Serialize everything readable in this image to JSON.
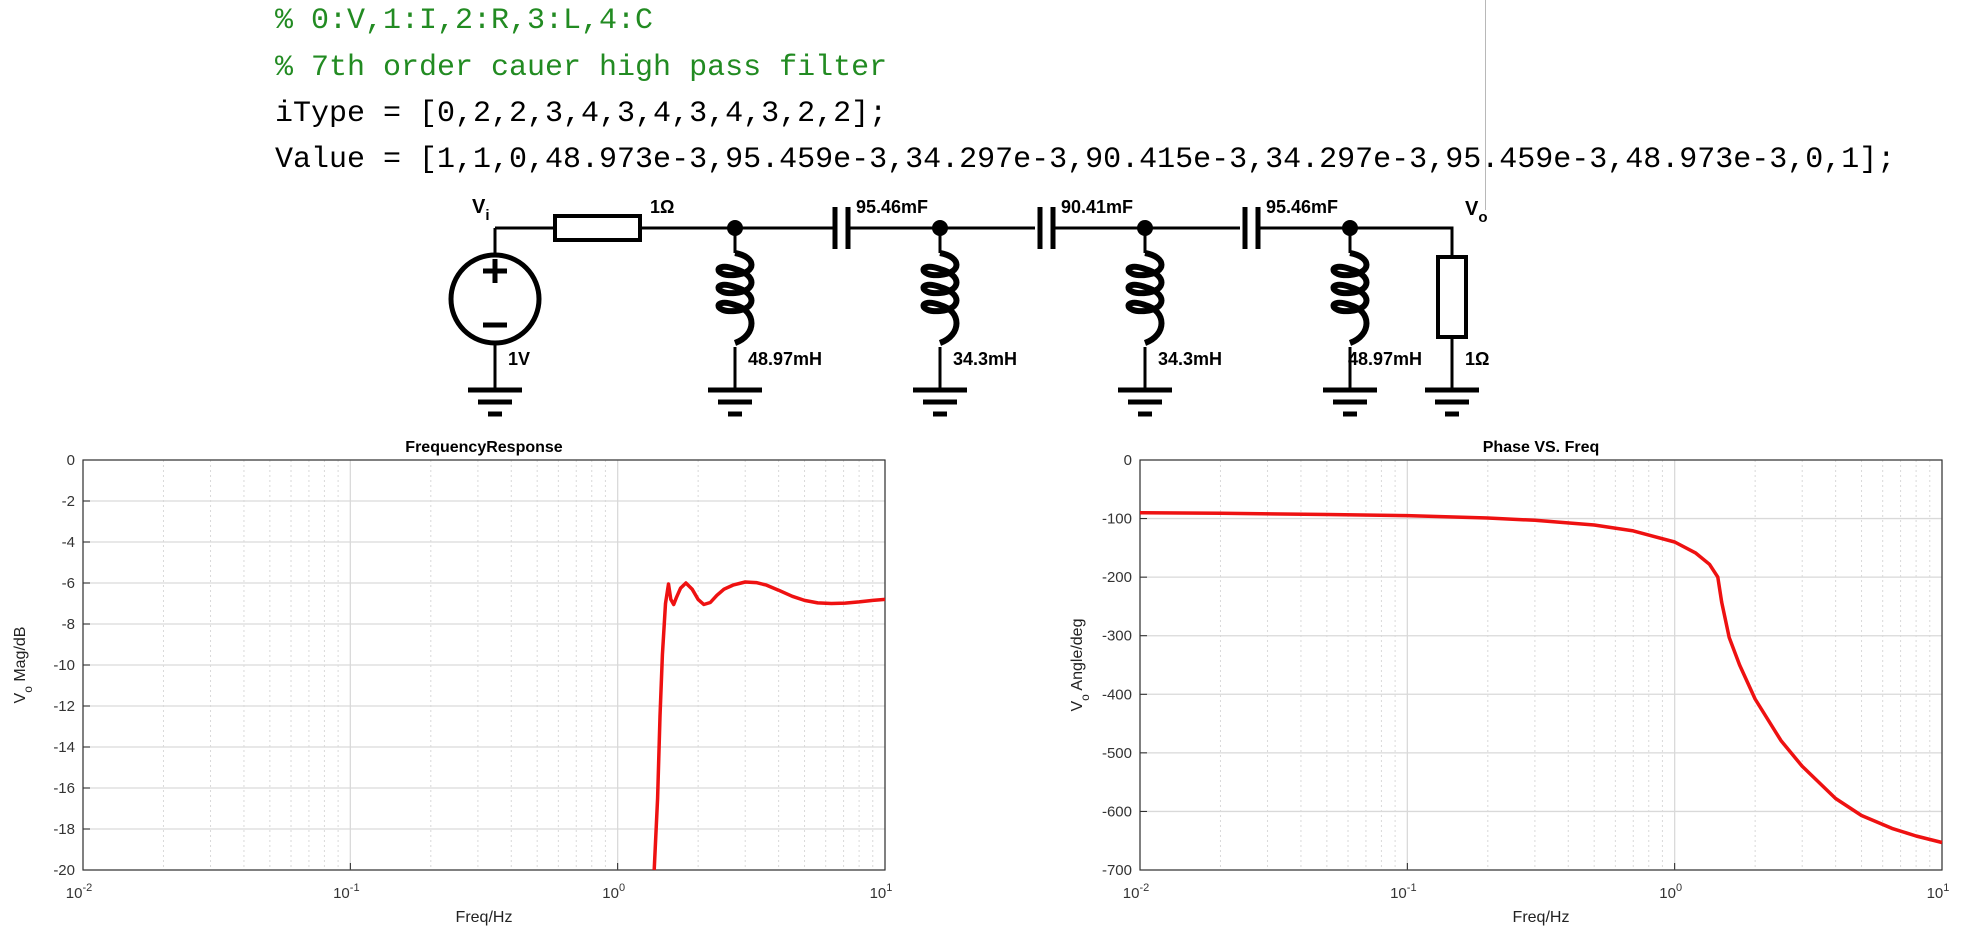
{
  "code": {
    "lines": [
      {
        "text": "% 0:V,1:I,2:R,3:L,4:C",
        "kind": "comment"
      },
      {
        "text": "% 7th order cauer high pass filter",
        "kind": "comment"
      },
      {
        "text": "iType = [0,2,2,3,4,3,4,3,4,3,2,2];",
        "kind": "plain"
      },
      {
        "text": "Value = [1,1,0,48.973e-3,95.459e-3,34.297e-3,90.415e-3,34.297e-3,95.459e-3,48.973e-3,0,1];",
        "kind": "plain"
      }
    ]
  },
  "schematic": {
    "vi_label": "V",
    "vi_sub": "i",
    "vo_label": "V",
    "vo_sub": "o",
    "source_value": "1V",
    "r_in": "1Ω",
    "r_load": "1Ω",
    "capacitors": [
      "95.46mF",
      "90.41mF",
      "95.46mF"
    ],
    "inductors": [
      "48.97mH",
      "34.3mH",
      "34.3mH",
      "48.97mH"
    ]
  },
  "colors": {
    "curve": "#ee1111",
    "comment": "#228b22",
    "grid": "#d9d9d9"
  },
  "chart_data": [
    {
      "type": "line",
      "title": "FrequencyResponse",
      "xlabel": "Freq/Hz",
      "ylabel": "V",
      "ylabel_sub": "o",
      "ylabel_suffix": " Mag/dB",
      "xscale": "log",
      "xlim": [
        0.01,
        10
      ],
      "ylim": [
        -20,
        0
      ],
      "yticks": [
        0,
        -2,
        -4,
        -6,
        -8,
        -10,
        -12,
        -14,
        -16,
        -18,
        -20
      ],
      "xticks": [
        {
          "base": "10",
          "exp": "-2"
        },
        {
          "base": "10",
          "exp": "-1"
        },
        {
          "base": "10",
          "exp": "0"
        },
        {
          "base": "10",
          "exp": "1"
        }
      ],
      "grid": true,
      "x": [
        1.37,
        1.41,
        1.44,
        1.47,
        1.51,
        1.55,
        1.58,
        1.62,
        1.66,
        1.72,
        1.8,
        1.9,
        2.0,
        2.1,
        2.22,
        2.35,
        2.5,
        2.7,
        3.0,
        3.3,
        3.6,
        4.0,
        4.5,
        5.0,
        5.6,
        6.3,
        7.1,
        8.0,
        9.0,
        10.0
      ],
      "y": [
        -20.0,
        -16.5,
        -12.5,
        -9.5,
        -7.0,
        -6.05,
        -6.8,
        -7.05,
        -6.7,
        -6.25,
        -6.0,
        -6.3,
        -6.8,
        -7.05,
        -6.95,
        -6.6,
        -6.3,
        -6.1,
        -5.95,
        -5.98,
        -6.1,
        -6.35,
        -6.65,
        -6.85,
        -6.97,
        -7.0,
        -6.98,
        -6.92,
        -6.85,
        -6.8
      ],
      "series_color": "#ee1111"
    },
    {
      "type": "line",
      "title": "Phase VS. Freq",
      "xlabel": "Freq/Hz",
      "ylabel": "V",
      "ylabel_sub": "o",
      "ylabel_suffix": " Angle/deg",
      "xscale": "log",
      "xlim": [
        0.01,
        10
      ],
      "ylim": [
        -700,
        0
      ],
      "yticks": [
        0,
        -100,
        -200,
        -300,
        -400,
        -500,
        -600,
        -700
      ],
      "xticks": [
        {
          "base": "10",
          "exp": "-2"
        },
        {
          "base": "10",
          "exp": "-1"
        },
        {
          "base": "10",
          "exp": "0"
        },
        {
          "base": "10",
          "exp": "1"
        }
      ],
      "grid": true,
      "x": [
        0.01,
        0.02,
        0.05,
        0.1,
        0.2,
        0.3,
        0.5,
        0.7,
        1.0,
        1.2,
        1.35,
        1.45,
        1.5,
        1.6,
        1.75,
        2.0,
        2.5,
        3.0,
        4.0,
        5.0,
        6.5,
        8.0,
        10.0
      ],
      "y": [
        -90,
        -91,
        -93,
        -95,
        -99,
        -103,
        -111,
        -121,
        -140,
        -159,
        -178,
        -200,
        -243,
        -303,
        -350,
        -408,
        -479,
        -523,
        -578,
        -607,
        -629,
        -642,
        -653
      ],
      "series_color": "#ee1111"
    }
  ]
}
